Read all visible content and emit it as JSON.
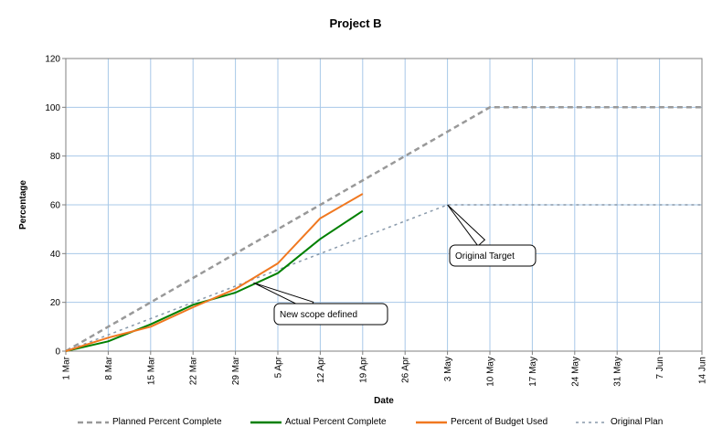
{
  "chart_data": {
    "type": "line",
    "title": "Project B",
    "xlabel": "Date",
    "ylabel": "Percentage",
    "ylim": [
      0,
      120
    ],
    "yticks": [
      0,
      20,
      40,
      60,
      80,
      100,
      120
    ],
    "x_tick_labels": [
      "1 Mar",
      "8 Mar",
      "15 Mar",
      "22 Mar",
      "29 Mar",
      "5 Apr",
      "12 Apr",
      "19 Apr",
      "26 Apr",
      "3 May",
      "10 May",
      "17 May",
      "24 May",
      "31 May",
      "7 Jun",
      "14 Jun"
    ],
    "grid": true,
    "legend_position": "bottom",
    "series": [
      {
        "name": "Planned Percent Complete",
        "color": "#999999",
        "style": "dashed",
        "points": [
          [
            "1 Mar",
            0
          ],
          [
            "10 May",
            100
          ],
          [
            "14 Jun",
            100
          ]
        ]
      },
      {
        "name": "Actual Percent Complete",
        "color": "#008000",
        "style": "solid",
        "points": [
          [
            "1 Mar",
            0
          ],
          [
            "8 Mar",
            4
          ],
          [
            "15 Mar",
            11
          ],
          [
            "22 Mar",
            19
          ],
          [
            "29 Mar",
            24
          ],
          [
            "5 Apr",
            32
          ],
          [
            "12 Apr",
            46
          ],
          [
            "19 Apr",
            57.5
          ]
        ]
      },
      {
        "name": "Percent of Budget Used",
        "color": "#f07820",
        "style": "solid",
        "points": [
          [
            "1 Mar",
            0
          ],
          [
            "8 Mar",
            5.5
          ],
          [
            "15 Mar",
            10
          ],
          [
            "22 Mar",
            18
          ],
          [
            "29 Mar",
            25.5
          ],
          [
            "5 Apr",
            36
          ],
          [
            "12 Apr",
            54.5
          ],
          [
            "19 Apr",
            64.5
          ]
        ]
      },
      {
        "name": "Original Plan",
        "color": "#8899aa",
        "style": "dotted",
        "points": [
          [
            "1 Mar",
            0
          ],
          [
            "3 May",
            60
          ],
          [
            "14 Jun",
            60
          ]
        ]
      }
    ],
    "annotations": [
      {
        "text": "Original Target",
        "target": [
          "3 May",
          60
        ]
      },
      {
        "text": "New scope defined",
        "target": [
          "1 Apr",
          28
        ]
      }
    ]
  }
}
